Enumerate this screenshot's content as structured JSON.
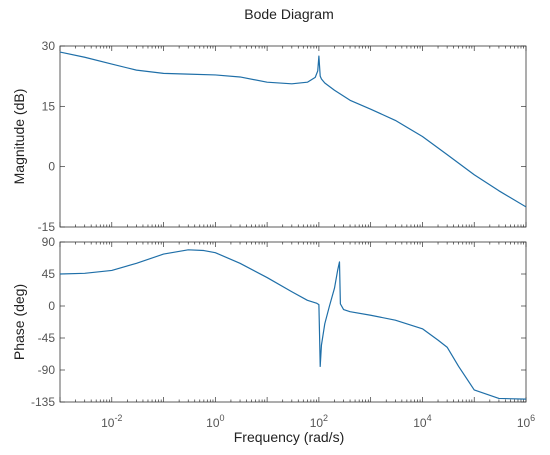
{
  "chart_data": {
    "type": "line",
    "title": "Bode Diagram",
    "xlabel": "Frequency  (rad/s)",
    "xscale": "log",
    "xlim": [
      0.001,
      1000000
    ],
    "x_ticks": [
      {
        "base": "10",
        "exp": "-2",
        "value": 0.01
      },
      {
        "base": "10",
        "exp": "0",
        "value": 1
      },
      {
        "base": "10",
        "exp": "2",
        "value": 100
      },
      {
        "base": "10",
        "exp": "4",
        "value": 10000
      },
      {
        "base": "10",
        "exp": "6",
        "value": 1000000
      }
    ],
    "line_color": "#1f6fa8",
    "grid": false,
    "panels": [
      {
        "name": "magnitude",
        "ylabel": "Magnitude (dB)",
        "ylim": [
          -15,
          30
        ],
        "y_ticks": [
          "30",
          "15",
          "0",
          "-15"
        ],
        "y_tick_values": [
          30,
          15,
          0,
          -15
        ],
        "series": [
          {
            "x": [
              0.001,
              0.003,
              0.01,
              0.03,
              0.1,
              0.3,
              1,
              3,
              10,
              30,
              60,
              85,
              95,
              100,
              103,
              106,
              112,
              130,
              200,
              400,
              1000,
              3000,
              10000,
              30000,
              100000,
              300000,
              1000000
            ],
            "y": [
              28.5,
              27.2,
              25.5,
              24,
              23.2,
              23,
              22.8,
              22.3,
              21,
              20.6,
              21,
              22.2,
              23.8,
              27.5,
              25,
              22.5,
              21.8,
              20.8,
              19,
              16.5,
              14.3,
              11.5,
              7.5,
              3,
              -2,
              -6,
              -10
            ]
          }
        ]
      },
      {
        "name": "phase",
        "ylabel": "Phase (deg)",
        "ylim": [
          -135,
          90
        ],
        "y_ticks": [
          "90",
          "45",
          "0",
          "-45",
          "-90",
          "-135"
        ],
        "y_tick_values": [
          90,
          45,
          0,
          -45,
          -90,
          -135
        ],
        "series": [
          {
            "x": [
              0.001,
              0.003,
              0.01,
              0.03,
              0.1,
              0.3,
              0.6,
              1,
              3,
              10,
              30,
              60,
              90,
              100,
              103,
              106,
              112,
              130,
              160,
              200,
              230,
              250,
              260,
              300,
              400,
              1000,
              3000,
              10000,
              20000,
              30000,
              50000,
              100000,
              300000,
              1000000
            ],
            "y": [
              45,
              46,
              50,
              60,
              73,
              79,
              78,
              75,
              60,
              40,
              20,
              8,
              4,
              2,
              -40,
              -85,
              -55,
              -25,
              0,
              25,
              50,
              62,
              3,
              -5,
              -8,
              -13,
              -20,
              -32,
              -48,
              -58,
              -85,
              -118,
              -130,
              -131
            ]
          }
        ]
      }
    ]
  }
}
